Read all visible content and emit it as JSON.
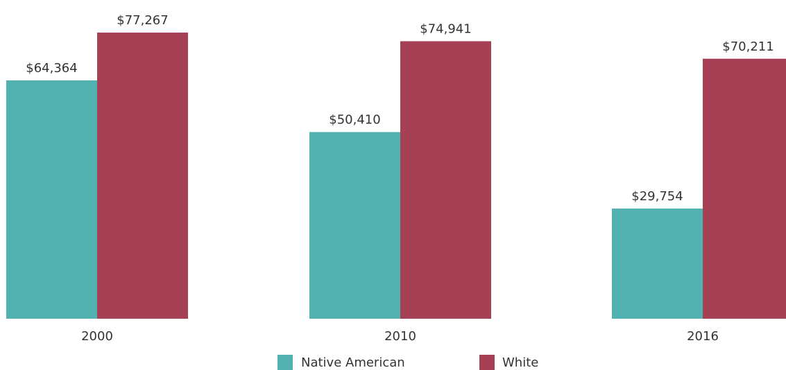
{
  "chart_data": {
    "type": "bar",
    "title": "",
    "xlabel": "",
    "ylabel": "",
    "categories": [
      "2000",
      "2010",
      "2016"
    ],
    "series": [
      {
        "name": "Native American",
        "color": "#52b2b1",
        "values": [
          64364,
          50410,
          29754
        ],
        "labels": [
          "$64,364",
          "$50,410",
          "$29,754"
        ]
      },
      {
        "name": "White",
        "color": "#a54055",
        "values": [
          77267,
          74941,
          70211
        ],
        "labels": [
          "$77,267",
          "$74,941",
          "$70,211"
        ]
      }
    ],
    "ylim": [
      0,
      85000
    ],
    "grid": false,
    "legend": "bottom-center"
  }
}
